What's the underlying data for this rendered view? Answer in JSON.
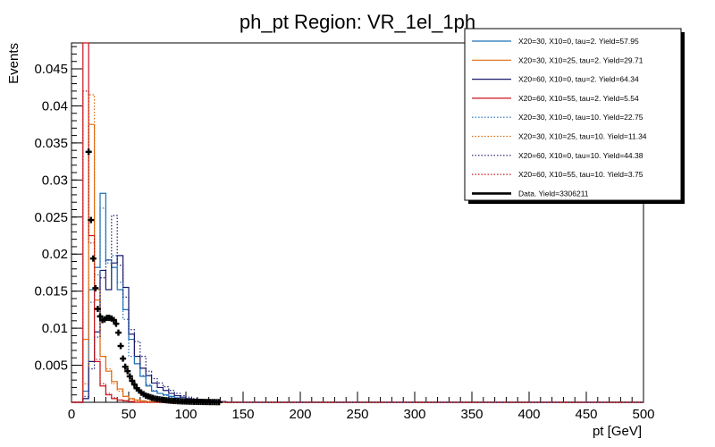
{
  "chart_data": {
    "type": "line",
    "title": "ph_pt Region: VR_1el_1ph",
    "xlabel": "pt [GeV]",
    "ylabel": "Events",
    "xlim": [
      0,
      500
    ],
    "ylim": [
      0,
      0.0485
    ],
    "bin_edges": [
      0,
      5,
      10,
      15,
      20,
      25,
      30,
      35,
      40,
      45,
      50,
      55,
      60,
      65,
      70,
      75,
      80,
      85,
      90,
      95,
      100,
      105,
      110,
      115,
      120,
      125,
      130,
      135,
      140
    ],
    "xticks": [
      0,
      50,
      100,
      150,
      200,
      250,
      300,
      350,
      400,
      450,
      500
    ],
    "xtick_labels": [
      "0",
      "50",
      "100",
      "150",
      "200",
      "250",
      "300",
      "350",
      "400",
      "450",
      "500"
    ],
    "yticks": [
      0.005,
      0.01,
      0.015,
      0.02,
      0.025,
      0.03,
      0.035,
      0.04,
      0.045
    ],
    "ytick_labels": [
      "0.005",
      "0.01",
      "0.015",
      "0.02",
      "0.025",
      "0.03",
      "0.035",
      "0.04",
      "0.045"
    ],
    "series": [
      {
        "name": "X20=30, X10=0, tau=2. Yield=57.95",
        "color": "#1f6fb5",
        "style": "solid",
        "values": [
          0,
          0,
          0.0015,
          0.0152,
          0.0182,
          0.0282,
          0.0192,
          0.0182,
          0.0152,
          0.0125,
          0.0085,
          0.0052,
          0.0035,
          0.0022,
          0.0015,
          0.0012,
          0.001,
          0.0008,
          0.0006,
          0.0005,
          0.0004,
          0.0003,
          0.0003,
          0.0002,
          0.0002,
          0.0001,
          0.0001,
          0
        ]
      },
      {
        "name": "X20=30, X10=25, tau=2. Yield=29.71",
        "color": "#e06a10",
        "style": "solid",
        "values": [
          0,
          0,
          0.0085,
          0.0375,
          0.0138,
          0.0062,
          0.0042,
          0.0028,
          0.0018,
          0.0008,
          0.0005,
          0.0003,
          0.0002,
          0.0001,
          0.0001,
          0,
          0,
          0,
          0,
          0,
          0,
          0,
          0,
          0,
          0,
          0,
          0,
          0
        ]
      },
      {
        "name": "X20=60, X10=0, tau=2. Yield=64.34",
        "color": "#1a1a6e",
        "style": "solid",
        "values": [
          0,
          0,
          0.0005,
          0.0055,
          0.0095,
          0.0178,
          0.0152,
          0.0188,
          0.0198,
          0.0155,
          0.0092,
          0.0062,
          0.0046,
          0.0036,
          0.0026,
          0.002,
          0.0016,
          0.0012,
          0.0009,
          0.0007,
          0.0005,
          0.0004,
          0.0003,
          0.0002,
          0.0002,
          0.0001,
          0.0001,
          0
        ]
      },
      {
        "name": "X20=60, X10=55, tau=2. Yield=5.54",
        "color": "#c8161d",
        "style": "solid",
        "values": [
          0,
          0,
          0.0485,
          0.0225,
          0.0055,
          0.0022,
          0.001,
          0.0005,
          0.0003,
          0.0002,
          0.0001,
          0,
          0,
          0,
          0,
          0,
          0,
          0,
          0,
          0,
          0,
          0,
          0,
          0,
          0,
          0,
          0,
          0
        ]
      },
      {
        "name": "X20=30, X10=0, tau=10. Yield=22.75",
        "color": "#1f6fb5",
        "style": "dotted",
        "values": [
          0,
          0,
          0.0008,
          0.0135,
          0.0172,
          0.0262,
          0.0188,
          0.0198,
          0.0162,
          0.0112,
          0.0062,
          0.0052,
          0.0036,
          0.0024,
          0.0016,
          0.0012,
          0.0009,
          0.0007,
          0.0005,
          0.0004,
          0.0003,
          0.0002,
          0.0002,
          0.0001,
          0.0001,
          0.0001,
          0,
          0
        ]
      },
      {
        "name": "X20=30, X10=25, tau=10. Yield=11.34",
        "color": "#e06a10",
        "style": "dotted",
        "values": [
          0,
          0,
          0.0025,
          0.0415,
          0.0152,
          0.0062,
          0.0045,
          0.0025,
          0.0015,
          0.0008,
          0.0004,
          0.0002,
          0.0001,
          0,
          0,
          0,
          0,
          0,
          0,
          0,
          0,
          0,
          0,
          0,
          0,
          0,
          0,
          0
        ]
      },
      {
        "name": "X20=60, X10=0, tau=10. Yield=44.38",
        "color": "#1a1a6e",
        "style": "dotted",
        "values": [
          0,
          0,
          0.0005,
          0.0045,
          0.0088,
          0.0168,
          0.0192,
          0.0252,
          0.0185,
          0.0142,
          0.0098,
          0.0082,
          0.0062,
          0.0042,
          0.0032,
          0.0026,
          0.0021,
          0.0016,
          0.0012,
          0.0009,
          0.0007,
          0.0005,
          0.0004,
          0.0003,
          0.0002,
          0.0002,
          0.0001,
          0
        ]
      },
      {
        "name": "X20=60, X10=55, tau=10. Yield=3.75",
        "color": "#c8161d",
        "style": "dotted",
        "values": [
          0,
          0,
          0.042,
          0.0215,
          0.0058,
          0.0025,
          0.0012,
          0.0006,
          0.0003,
          0.0002,
          0.0001,
          0,
          0,
          0,
          0,
          0,
          0,
          0,
          0,
          0,
          0,
          0,
          0,
          0,
          0,
          0,
          0,
          0
        ]
      }
    ],
    "data": {
      "name": "Data. Yield=3306211",
      "color": "#000000",
      "x": [
        15,
        17,
        19,
        21,
        23,
        25,
        27,
        29,
        31,
        33,
        35,
        37,
        39,
        41,
        43,
        45,
        47,
        49,
        51,
        53,
        55,
        57,
        59,
        61,
        63,
        65,
        67,
        69,
        71,
        73,
        75,
        77,
        79,
        81,
        83,
        85,
        87,
        89,
        91,
        93,
        95,
        97,
        99,
        101,
        103,
        105,
        107,
        109,
        111,
        113,
        115,
        117,
        119,
        121,
        123,
        125,
        127,
        129
      ],
      "y": [
        0.0338,
        0.0246,
        0.0194,
        0.0154,
        0.0126,
        0.0116,
        0.0111,
        0.0112,
        0.0114,
        0.0114,
        0.0113,
        0.0111,
        0.0106,
        0.0094,
        0.0076,
        0.0059,
        0.0048,
        0.0042,
        0.0035,
        0.0029,
        0.0024,
        0.0019,
        0.0016,
        0.0013,
        0.0011,
        0.0009,
        0.0008,
        0.0007,
        0.0006,
        0.0005,
        0.00045,
        0.0004,
        0.00035,
        0.0003,
        0.00027,
        0.00024,
        0.00021,
        0.00019,
        0.00017,
        0.00015,
        0.00013,
        0.00012,
        0.00011,
        0.0001,
        9e-05,
        8e-05,
        7e-05,
        6e-05,
        6e-05,
        5e-05,
        5e-05,
        4e-05,
        4e-05,
        3e-05,
        3e-05,
        3e-05,
        2e-05,
        2e-05
      ]
    }
  }
}
